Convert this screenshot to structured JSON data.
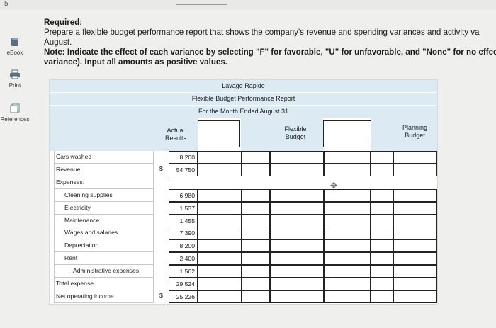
{
  "top": {
    "page_num": "5"
  },
  "sidebar": {
    "items": [
      {
        "label": "eBook"
      },
      {
        "label": "Print"
      },
      {
        "label": "References"
      }
    ]
  },
  "instructions": {
    "required": "Required:",
    "line1": "Prepare a flexible budget performance report that shows the company's revenue and spending variances and activity va",
    "line2": "August.",
    "note1": "Note: Indicate the effect of each variance by selecting \"F\" for favorable, \"U\" for unfavorable, and \"None\" for no effec",
    "note2": "variance). Input all amounts as positive values."
  },
  "report": {
    "company": "Lavage Rapide",
    "title": "Flexible Budget Performance Report",
    "period": "For the Month Ended August 31",
    "col_actual": "Actual Results",
    "col_flexible": "Flexible Budget",
    "col_planning": "Planning Budget",
    "rows": [
      {
        "label": "Cars washed",
        "actual": "8,200",
        "dollar": "",
        "indent": 0
      },
      {
        "label": "Revenue",
        "actual": "54,750",
        "dollar": "$",
        "indent": 0
      },
      {
        "label": "Expenses:",
        "actual": "",
        "dollar": "",
        "indent": 0,
        "noinput": true
      },
      {
        "label": "Cleaning supplies",
        "actual": "6,980",
        "dollar": "",
        "indent": 1
      },
      {
        "label": "Electricity",
        "actual": "1,537",
        "dollar": "",
        "indent": 1
      },
      {
        "label": "Maintenance",
        "actual": "1,455",
        "dollar": "",
        "indent": 1
      },
      {
        "label": "Wages and salaries",
        "actual": "7,390",
        "dollar": "",
        "indent": 1
      },
      {
        "label": "Depreciation",
        "actual": "8,200",
        "dollar": "",
        "indent": 1
      },
      {
        "label": "Rent",
        "actual": "2,400",
        "dollar": "",
        "indent": 1
      },
      {
        "label": "Administrative expenses",
        "actual": "1,562",
        "dollar": "",
        "indent": 2
      },
      {
        "label": "Total expense",
        "actual": "29,524",
        "dollar": "",
        "indent": 0
      },
      {
        "label": "Net operating income",
        "actual": "25,226",
        "dollar": "$",
        "indent": 0
      }
    ]
  }
}
